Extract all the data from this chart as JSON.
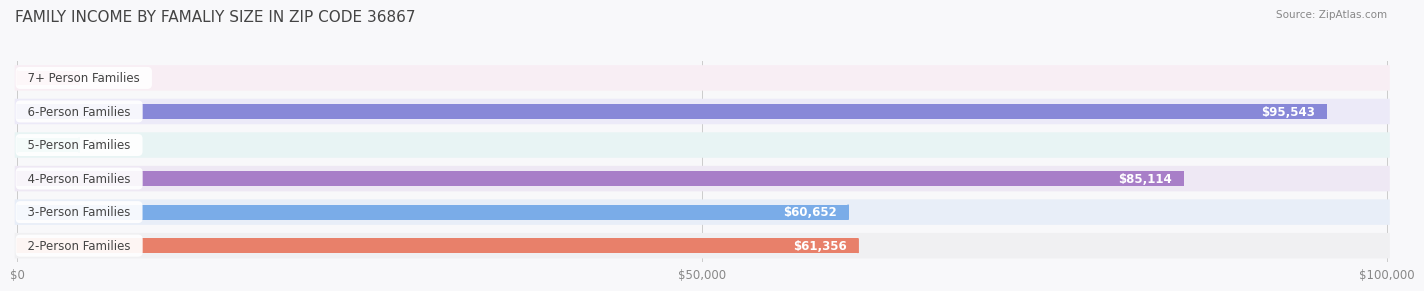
{
  "title": "FAMILY INCOME BY FAMALIY SIZE IN ZIP CODE 36867",
  "source": "Source: ZipAtlas.com",
  "categories": [
    "2-Person Families",
    "3-Person Families",
    "4-Person Families",
    "5-Person Families",
    "6-Person Families",
    "7+ Person Families"
  ],
  "values": [
    61356,
    60652,
    85114,
    0,
    95543,
    0
  ],
  "bar_colors": [
    "#E8806A",
    "#7AACE8",
    "#A87EC8",
    "#6DCFC0",
    "#8888D8",
    "#F0A0B8"
  ],
  "bg_row_colors": [
    "#F0F0F2",
    "#E8EEF8",
    "#EEE8F4",
    "#E8F4F4",
    "#ECEAF8",
    "#F8EEF4"
  ],
  "xlim": [
    0,
    100000
  ],
  "xticks": [
    0,
    50000,
    100000
  ],
  "xtick_labels": [
    "$0",
    "$50,000",
    "$100,000"
  ],
  "label_fontsize": 8.5,
  "title_fontsize": 11,
  "value_label_color": "#ffffff",
  "value_label_outside_color": "#888888",
  "stub_value": 4500
}
